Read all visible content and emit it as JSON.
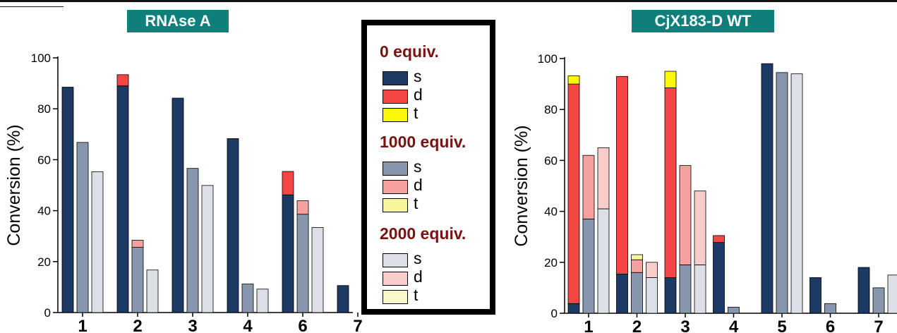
{
  "colors": {
    "badge": "#0f7f7b",
    "heading": "#7a1212",
    "c0s": "#1c3a63",
    "c0d": "#f54545",
    "c0t": "#fbf80a",
    "c1s": "#8796ac",
    "c1d": "#f6a0a0",
    "c1t": "#f7f69a",
    "c2s": "#dcdfe5",
    "c2d": "#f9cccc",
    "c2t": "#fbf8c8"
  },
  "legend": {
    "groups": [
      {
        "heading": "0 equiv.",
        "items": [
          {
            "label": "s",
            "color": "#1c3a63"
          },
          {
            "label": "d",
            "color": "#f54545"
          },
          {
            "label": "t",
            "color": "#fbf80a"
          }
        ]
      },
      {
        "heading": "1000 equiv.",
        "items": [
          {
            "label": "s",
            "color": "#8796ac"
          },
          {
            "label": "d",
            "color": "#f6a0a0"
          },
          {
            "label": "t",
            "color": "#f7f69a"
          }
        ]
      },
      {
        "heading": "2000 equiv.",
        "items": [
          {
            "label": "s",
            "color": "#dcdfe5"
          },
          {
            "label": "d",
            "color": "#f9cccc"
          },
          {
            "label": "t",
            "color": "#fbf8c8"
          }
        ]
      }
    ]
  },
  "chart_data": [
    {
      "type": "bar",
      "stacked": true,
      "title": "RNAse A",
      "ylabel": "Conversion (%)",
      "xlabel": "",
      "ylim": [
        0,
        100
      ],
      "yticks": [
        0,
        20,
        40,
        60,
        80,
        100
      ],
      "categories": [
        "1",
        "2",
        "3",
        "4",
        "6",
        "7"
      ],
      "groups": [
        "0 equiv.",
        "1000 equiv.",
        "2000 equiv."
      ],
      "components": [
        "s",
        "d",
        "t"
      ],
      "values": [
        [
          [
            88.5,
            0,
            0
          ],
          [
            66.8,
            0,
            0
          ],
          [
            55.3,
            0,
            0
          ]
        ],
        [
          [
            89,
            4.4,
            0
          ],
          [
            25.6,
            2.8,
            0
          ],
          [
            16.7,
            0,
            0
          ]
        ],
        [
          [
            84.2,
            0,
            0
          ],
          [
            56.6,
            0,
            0
          ],
          [
            49.9,
            0,
            0
          ]
        ],
        [
          [
            68.3,
            0,
            0
          ],
          [
            11.2,
            0,
            0
          ],
          [
            9.2,
            0,
            0
          ]
        ],
        [
          [
            46.2,
            9.2,
            0
          ],
          [
            38.6,
            5.3,
            0
          ],
          [
            33.4,
            0,
            0
          ]
        ],
        [
          [
            10.6,
            0,
            0
          ],
          [
            0,
            0,
            0
          ],
          [
            4.5,
            0,
            0
          ]
        ]
      ]
    },
    {
      "type": "bar",
      "stacked": true,
      "title": "CjX183-D WT",
      "ylabel": "Conversion (%)",
      "xlabel": "",
      "ylim": [
        0,
        100
      ],
      "yticks": [
        0,
        20,
        40,
        60,
        80,
        100
      ],
      "categories": [
        "1",
        "2",
        "3",
        "4",
        "5",
        "6",
        "7"
      ],
      "groups": [
        "0 equiv.",
        "1000 equiv.",
        "2000 equiv."
      ],
      "components": [
        "s",
        "d",
        "t"
      ],
      "values": [
        [
          [
            3.8,
            86.2,
            3.2
          ],
          [
            37,
            25,
            0
          ],
          [
            41,
            24,
            0
          ]
        ],
        [
          [
            15.4,
            77.6,
            0
          ],
          [
            16,
            5,
            2
          ],
          [
            14,
            6,
            0
          ]
        ],
        [
          [
            14,
            74.5,
            6.5
          ],
          [
            19,
            39,
            0
          ],
          [
            19,
            29,
            0
          ]
        ],
        [
          [
            27.8,
            2.7,
            0
          ],
          [
            2.4,
            0,
            0
          ],
          [
            0,
            0,
            0
          ]
        ],
        [
          [
            98,
            0,
            0
          ],
          [
            94.5,
            0,
            0
          ],
          [
            94,
            0,
            0
          ]
        ],
        [
          [
            14,
            0,
            0
          ],
          [
            3.8,
            0,
            0
          ],
          [
            0,
            0,
            0
          ]
        ],
        [
          [
            18,
            0,
            0
          ],
          [
            10,
            0,
            0
          ],
          [
            15,
            0,
            0
          ]
        ]
      ]
    }
  ]
}
